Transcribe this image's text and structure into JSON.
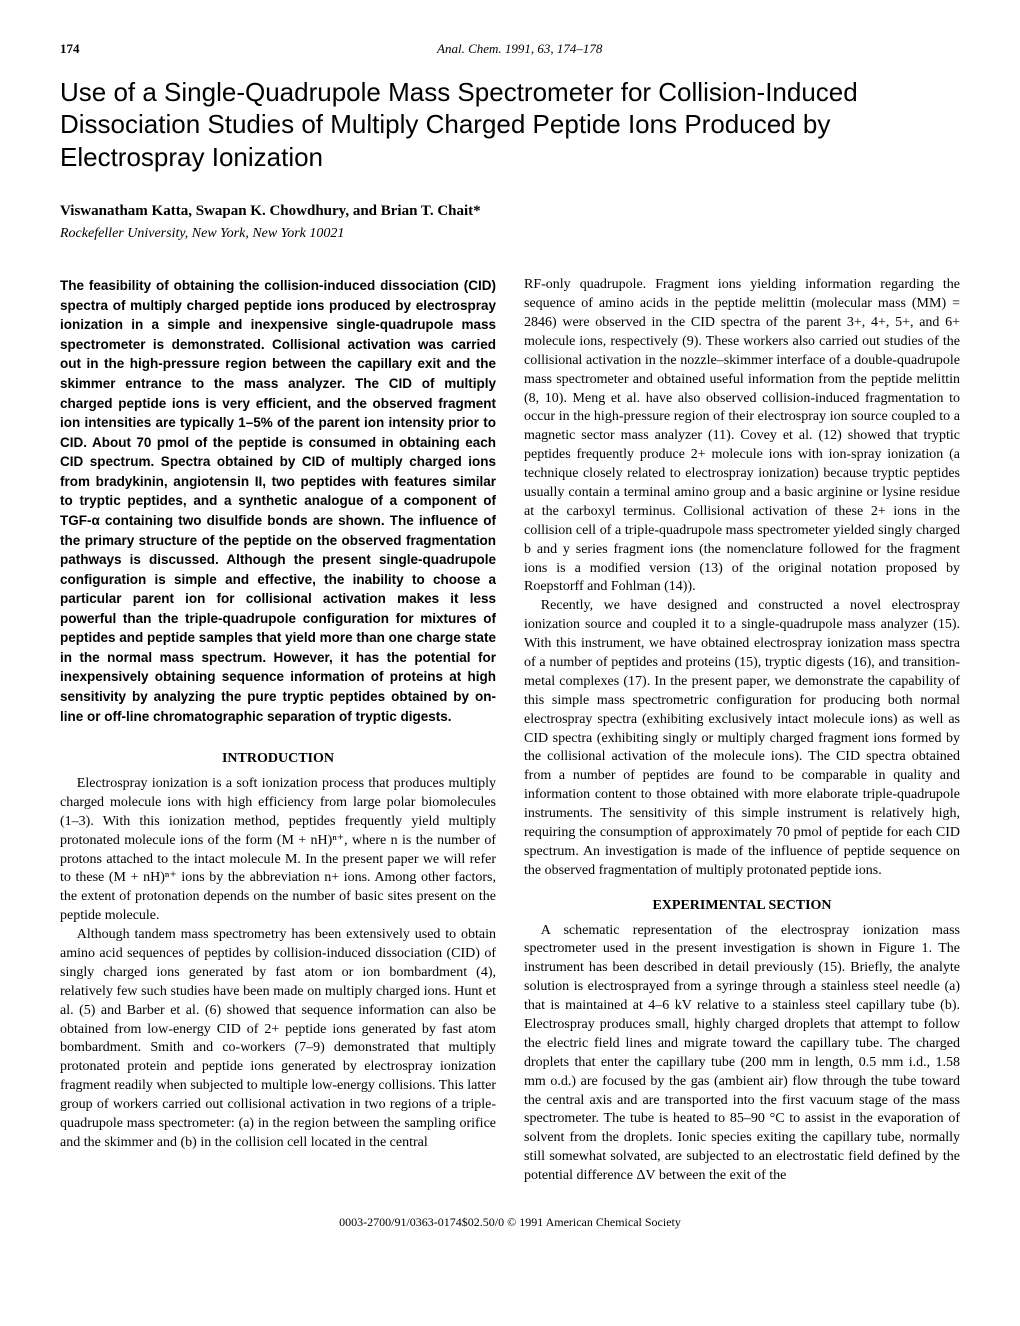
{
  "header": {
    "page_number": "174",
    "journal_ref": "Anal. Chem. 1991, 63, 174–178"
  },
  "title": "Use of a Single-Quadrupole Mass Spectrometer for Collision-Induced Dissociation Studies of Multiply Charged Peptide Ions Produced by Electrospray Ionization",
  "authors": "Viswanatham Katta, Swapan K. Chowdhury, and Brian T. Chait*",
  "affiliation": "Rockefeller University, New York, New York 10021",
  "abstract": "The feasibility of obtaining the collision-induced dissociation (CID) spectra of multiply charged peptide ions produced by electrospray ionization in a simple and inexpensive single-quadrupole mass spectrometer is demonstrated. Collisional activation was carried out in the high-pressure region between the capillary exit and the skimmer entrance to the mass analyzer. The CID of multiply charged peptide ions is very efficient, and the observed fragment ion intensities are typically 1–5% of the parent ion intensity prior to CID. About 70 pmol of the peptide is consumed in obtaining each CID spectrum. Spectra obtained by CID of multiply charged ions from bradykinin, angiotensin II, two peptides with features similar to tryptic peptides, and a synthetic analogue of a component of TGF-α containing two disulfide bonds are shown. The influence of the primary structure of the peptide on the observed fragmentation pathways is discussed. Although the present single-quadrupole configuration is simple and effective, the inability to choose a particular parent ion for collisional activation makes it less powerful than the triple-quadrupole configuration for mixtures of peptides and peptide samples that yield more than one charge state in the normal mass spectrum. However, it has the potential for inexpensively obtaining sequence information of proteins at high sensitivity by analyzing the pure tryptic peptides obtained by on-line or off-line chromatographic separation of tryptic digests.",
  "sections": {
    "intro_head": "INTRODUCTION",
    "intro_p1": "Electrospray ionization is a soft ionization process that produces multiply charged molecule ions with high efficiency from large polar biomolecules (1–3). With this ionization method, peptides frequently yield multiply protonated molecule ions of the form (M + nH)ⁿ⁺, where n is the number of protons attached to the intact molecule M. In the present paper we will refer to these (M + nH)ⁿ⁺ ions by the abbreviation n+ ions. Among other factors, the extent of protonation depends on the number of basic sites present on the peptide molecule.",
    "intro_p2": "Although tandem mass spectrometry has been extensively used to obtain amino acid sequences of peptides by collision-induced dissociation (CID) of singly charged ions generated by fast atom or ion bombardment (4), relatively few such studies have been made on multiply charged ions. Hunt et al. (5) and Barber et al. (6) showed that sequence information can also be obtained from low-energy CID of 2+ peptide ions generated by fast atom bombardment. Smith and co-workers (7–9) demonstrated that multiply protonated protein and peptide ions generated by electrospray ionization fragment readily when subjected to multiple low-energy collisions. This latter group of workers carried out collisional activation in two regions of a triple-quadrupole mass spectrometer: (a) in the region between the sampling orifice and the skimmer and (b) in the collision cell located in the central",
    "col2_p1": "RF-only quadrupole. Fragment ions yielding information regarding the sequence of amino acids in the peptide melittin (molecular mass (MM) = 2846) were observed in the CID spectra of the parent 3+, 4+, 5+, and 6+ molecule ions, respectively (9). These workers also carried out studies of the collisional activation in the nozzle–skimmer interface of a double-quadrupole mass spectrometer and obtained useful information from the peptide melittin (8, 10). Meng et al. have also observed collision-induced fragmentation to occur in the high-pressure region of their electrospray ion source coupled to a magnetic sector mass analyzer (11). Covey et al. (12) showed that tryptic peptides frequently produce 2+ molecule ions with ion-spray ionization (a technique closely related to electrospray ionization) because tryptic peptides usually contain a terminal amino group and a basic arginine or lysine residue at the carboxyl terminus. Collisional activation of these 2+ ions in the collision cell of a triple-quadrupole mass spectrometer yielded singly charged b and y series fragment ions (the nomenclature followed for the fragment ions is a modified version (13) of the original notation proposed by Roepstorff and Fohlman (14)).",
    "col2_p2": "Recently, we have designed and constructed a novel electrospray ionization source and coupled it to a single-quadrupole mass analyzer (15). With this instrument, we have obtained electrospray ionization mass spectra of a number of peptides and proteins (15), tryptic digests (16), and transition-metal complexes (17). In the present paper, we demonstrate the capability of this simple mass spectrometric configuration for producing both normal electrospray spectra (exhibiting exclusively intact molecule ions) as well as CID spectra (exhibiting singly or multiply charged fragment ions formed by the collisional activation of the molecule ions). The CID spectra obtained from a number of peptides are found to be comparable in quality and information content to those obtained with more elaborate triple-quadrupole instruments. The sensitivity of this simple instrument is relatively high, requiring the consumption of approximately 70 pmol of peptide for each CID spectrum. An investigation is made of the influence of peptide sequence on the observed fragmentation of multiply protonated peptide ions.",
    "exp_head": "EXPERIMENTAL SECTION",
    "exp_p1": "A schematic representation of the electrospray ionization mass spectrometer used in the present investigation is shown in Figure 1. The instrument has been described in detail previously (15). Briefly, the analyte solution is electrosprayed from a syringe through a stainless steel needle (a) that is maintained at 4–6 kV relative to a stainless steel capillary tube (b). Electrospray produces small, highly charged droplets that attempt to follow the electric field lines and migrate toward the capillary tube. The charged droplets that enter the capillary tube (200 mm in length, 0.5 mm i.d., 1.58 mm o.d.) are focused by the gas (ambient air) flow through the tube toward the central axis and are transported into the first vacuum stage of the mass spectrometer. The tube is heated to 85–90 °C to assist in the evaporation of solvent from the droplets. Ionic species exiting the capillary tube, normally still somewhat solvated, are subjected to an electrostatic field defined by the potential difference ΔV between the exit of the"
  },
  "footer": "0003-2700/91/0363-0174$02.50/0   © 1991 American Chemical Society"
}
